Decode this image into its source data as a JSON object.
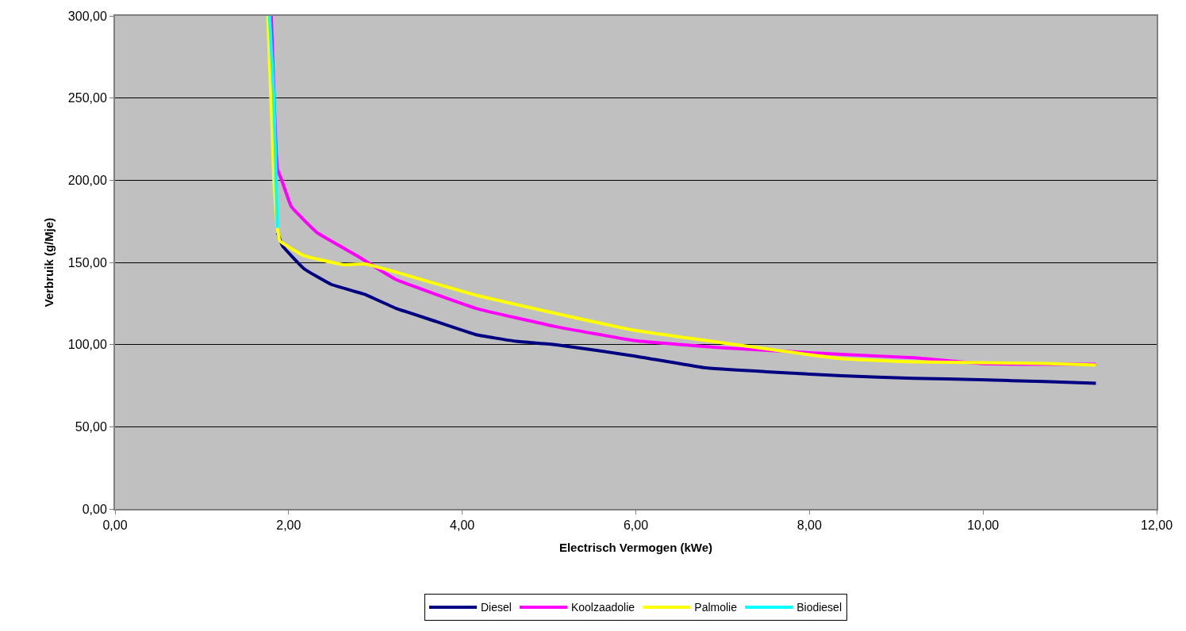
{
  "chart_data": {
    "type": "line",
    "xlabel": "Electrisch Vermogen (kWe)",
    "ylabel": "Verbruik (g/Mje)",
    "xlim": [
      0,
      12
    ],
    "ylim": [
      0,
      300
    ],
    "xticks": [
      {
        "value": 0,
        "label": "0,00"
      },
      {
        "value": 2,
        "label": "2,00"
      },
      {
        "value": 4,
        "label": "4,00"
      },
      {
        "value": 6,
        "label": "6,00"
      },
      {
        "value": 8,
        "label": "8,00"
      },
      {
        "value": 10,
        "label": "10,00"
      },
      {
        "value": 12,
        "label": "12,00"
      }
    ],
    "yticks": [
      {
        "value": 0,
        "label": "0,00"
      },
      {
        "value": 50,
        "label": "50,00"
      },
      {
        "value": 100,
        "label": "100,00"
      },
      {
        "value": 150,
        "label": "150,00"
      },
      {
        "value": 200,
        "label": "200,00"
      },
      {
        "value": 250,
        "label": "250,00"
      },
      {
        "value": 300,
        "label": "300,00"
      }
    ],
    "grid": "y",
    "legend": "bottom",
    "marker": "none",
    "line_style": "solid",
    "series": [
      {
        "name": "Diesel",
        "color": "#000080",
        "x": [
          1.87,
          1.93,
          2.18,
          2.49,
          2.85,
          2.88,
          3.24,
          3.7,
          4.16,
          4.62,
          5.07,
          5.99,
          6.78,
          7.5,
          8.37,
          9.2,
          9.96,
          10.7,
          11.3
        ],
        "values": [
          168,
          160,
          146,
          136.6,
          131,
          130.5,
          122,
          114,
          106,
          102,
          100,
          93,
          86,
          83.5,
          81,
          79.5,
          78.6,
          77.5,
          76.5
        ]
      },
      {
        "name": "Koolzaadolie",
        "color": "#ff00ff",
        "x": [
          1.8,
          1.87,
          1.92,
          2.03,
          2.33,
          2.79,
          2.88,
          3.24,
          4.16,
          5.07,
          5.99,
          7.0,
          8.37,
          9.2,
          9.96,
          10.7,
          11.3
        ],
        "values": [
          300,
          207,
          200,
          184,
          168,
          154,
          151,
          139.5,
          122,
          111,
          102.4,
          98,
          94,
          92,
          88.5,
          88,
          88
        ]
      },
      {
        "name": "Palmolie",
        "color": "#ffff00",
        "x": [
          1.76,
          1.83,
          1.87,
          1.9,
          2.18,
          2.63,
          2.88,
          3.24,
          4.16,
          5.07,
          5.99,
          7.0,
          8.37,
          9.2,
          9.96,
          10.7,
          11.3
        ],
        "values": [
          300,
          200,
          171,
          163,
          154,
          148.6,
          149,
          144,
          130,
          119,
          108.6,
          101,
          91.4,
          89.5,
          89,
          88.5,
          87.5
        ]
      },
      {
        "name": "Biodiesel",
        "color": "#00ffff",
        "x": [
          1.78,
          1.83,
          1.87
        ],
        "values": [
          300,
          250,
          171
        ]
      }
    ]
  }
}
